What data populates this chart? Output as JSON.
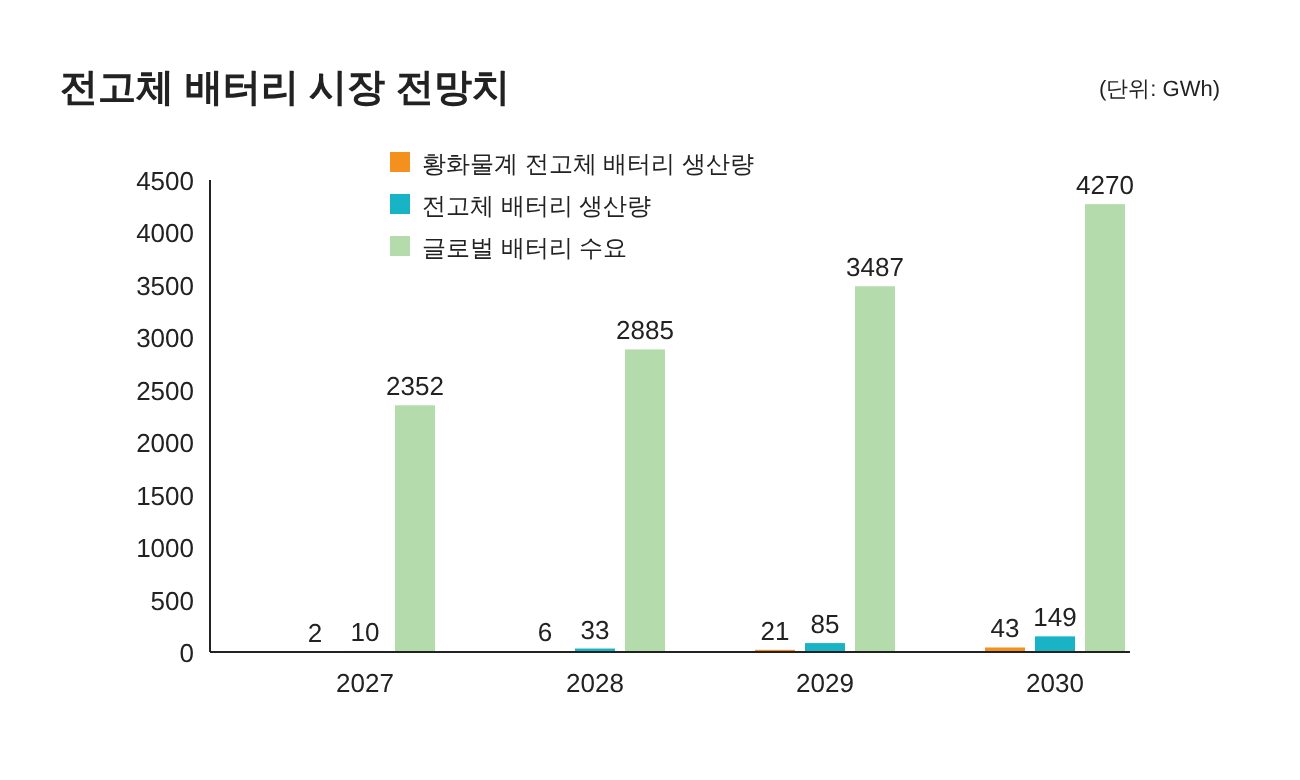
{
  "chart_data": {
    "type": "bar",
    "title": "전고체 배터리 시장 전망치",
    "subtitle": "(단위: GWh)",
    "categories": [
      "2027",
      "2028",
      "2029",
      "2030"
    ],
    "series": [
      {
        "name": "황화물계 전고체 배터리 생산량",
        "color": "#f4901e",
        "values": [
          2,
          6,
          21,
          43
        ]
      },
      {
        "name": "전고체 배터리 생산량",
        "color": "#18b4c6",
        "values": [
          10,
          33,
          85,
          149
        ]
      },
      {
        "name": "글로벌 배터리 수요",
        "color": "#b3dbab",
        "values": [
          2352,
          2885,
          3487,
          4270
        ]
      }
    ],
    "ylim": [
      0,
      4500
    ],
    "yticks": [
      0,
      500,
      1000,
      1500,
      2000,
      2500,
      3000,
      3500,
      4000,
      4500
    ],
    "data_labels": true,
    "legend": "top left"
  }
}
